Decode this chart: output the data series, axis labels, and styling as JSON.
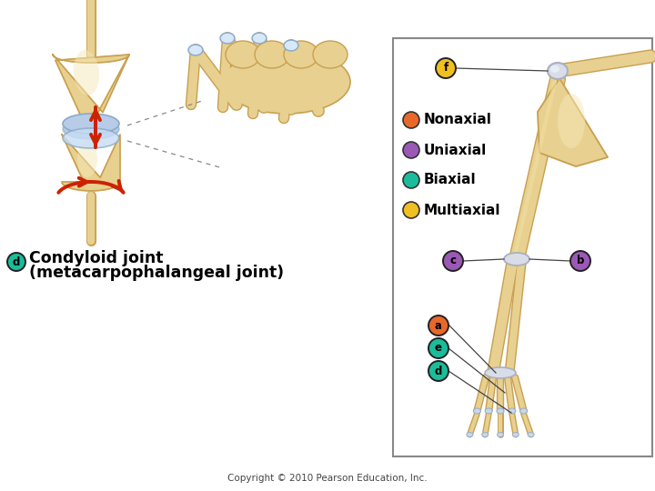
{
  "bg_color": "#ffffff",
  "copyright_text": "Copyright © 2010 Pearson Education, Inc.",
  "label_text_1": "Condyloid joint",
  "label_text_2": "(metacarpophalangeal joint)",
  "legend_items": [
    {
      "label": "Nonaxial",
      "color": "#e8682a"
    },
    {
      "label": "Uniaxial",
      "color": "#9b59b6"
    },
    {
      "label": "Biaxial",
      "color": "#1abc9c"
    },
    {
      "label": "Multiaxial",
      "color": "#f0c020"
    }
  ],
  "badge_d_color": "#1abc9c",
  "badge_f_color": "#f0c020",
  "badge_a_color": "#e8682a",
  "badge_e_color": "#1abc9c",
  "badge_b_color": "#9b59b6",
  "badge_c_color": "#9b59b6",
  "bone_color": "#e8d090",
  "bone_outline": "#c8a050",
  "bone_shadow": "#d4b870",
  "joint_color": "#b8cce8",
  "joint_edge": "#8aaac8",
  "box_edge": "#888888",
  "dashed_color": "#888888"
}
